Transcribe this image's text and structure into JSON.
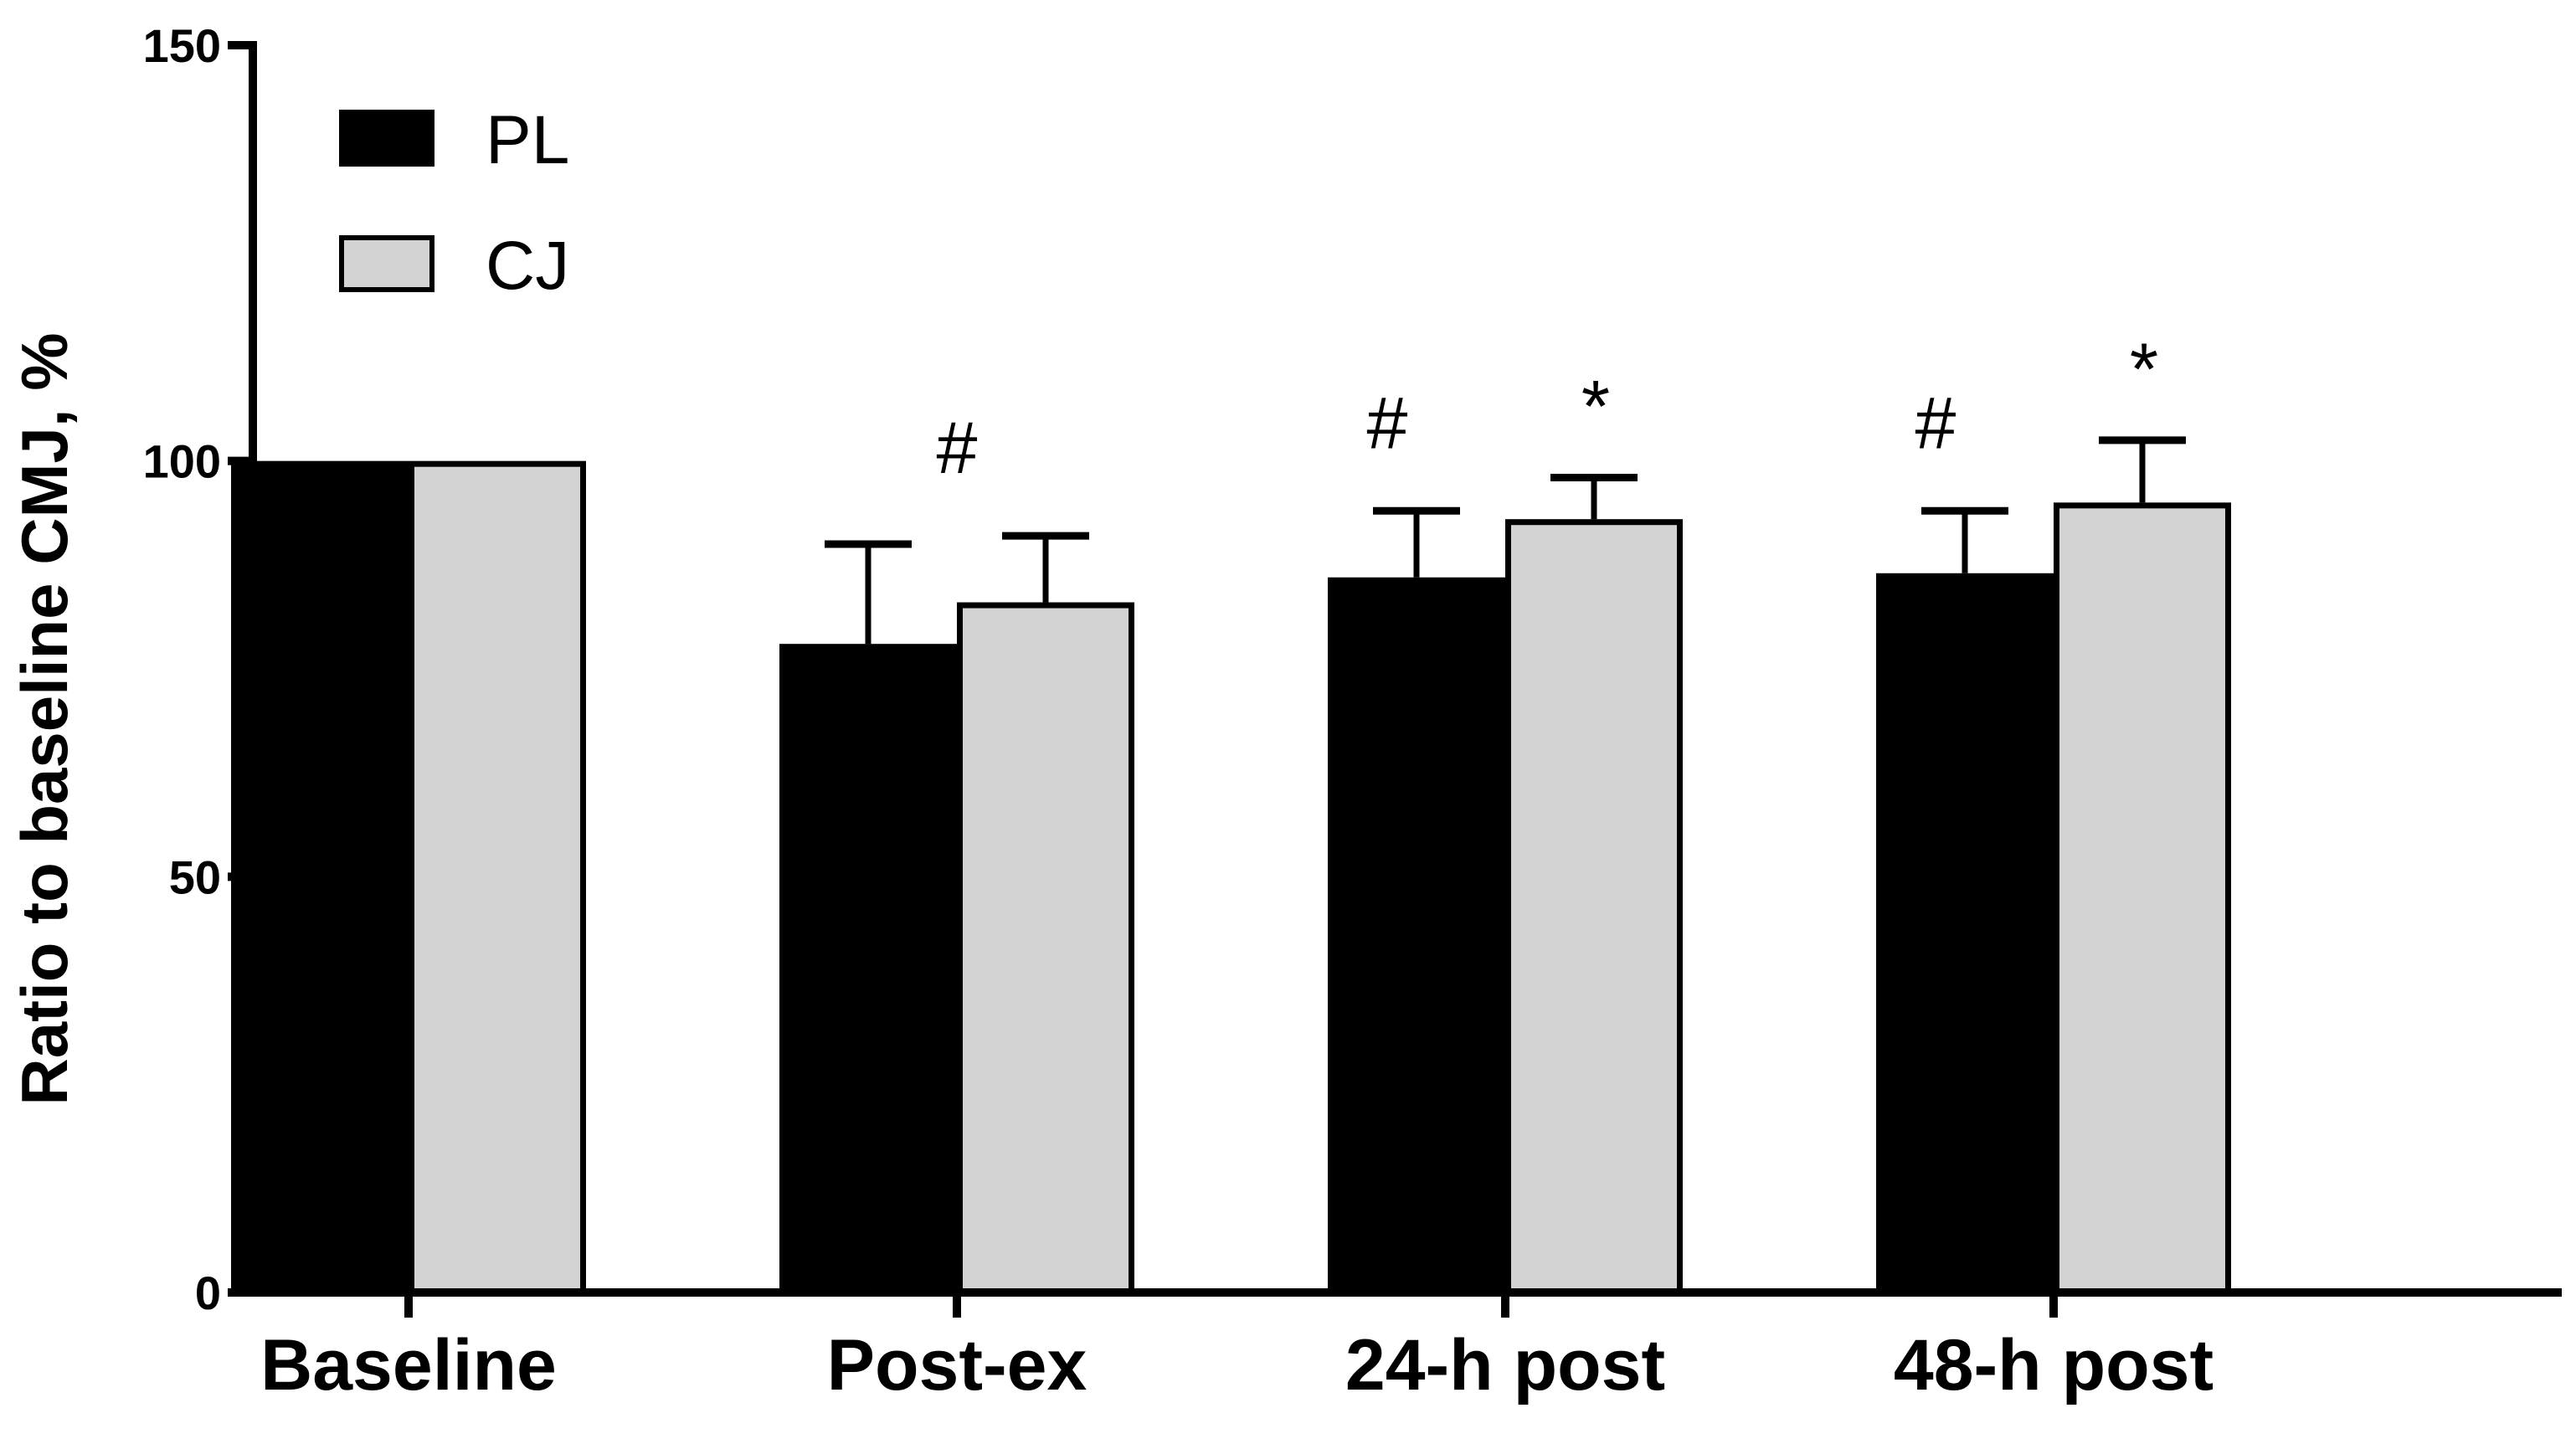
{
  "chart_data": {
    "type": "bar",
    "title": "",
    "xlabel": "",
    "ylabel": "Ratio to baseline CMJ, %",
    "ylim": [
      0,
      150
    ],
    "yticks": [
      0,
      50,
      100,
      150
    ],
    "grid": false,
    "legend_position": "top-left",
    "categories": [
      "Baseline",
      "Post-ex",
      "24-h post",
      "48-h post"
    ],
    "series": [
      {
        "name": "PL",
        "color": "#000000",
        "values": [
          100,
          78,
          86,
          86.5
        ],
        "error": [
          0,
          12,
          8,
          7.5
        ]
      },
      {
        "name": "CJ",
        "color": "#d3d3d3",
        "values": [
          100,
          83,
          93,
          95
        ],
        "error": [
          0,
          8,
          5,
          7.5
        ]
      }
    ],
    "annotations": [
      {
        "category": "Post-ex",
        "series": "between",
        "text": "#"
      },
      {
        "category": "24-h post",
        "series": "PL",
        "text": "#"
      },
      {
        "category": "24-h post",
        "series": "CJ",
        "text": "*"
      },
      {
        "category": "48-h post",
        "series": "PL",
        "text": "#"
      },
      {
        "category": "48-h post",
        "series": "CJ",
        "text": "*"
      }
    ]
  }
}
